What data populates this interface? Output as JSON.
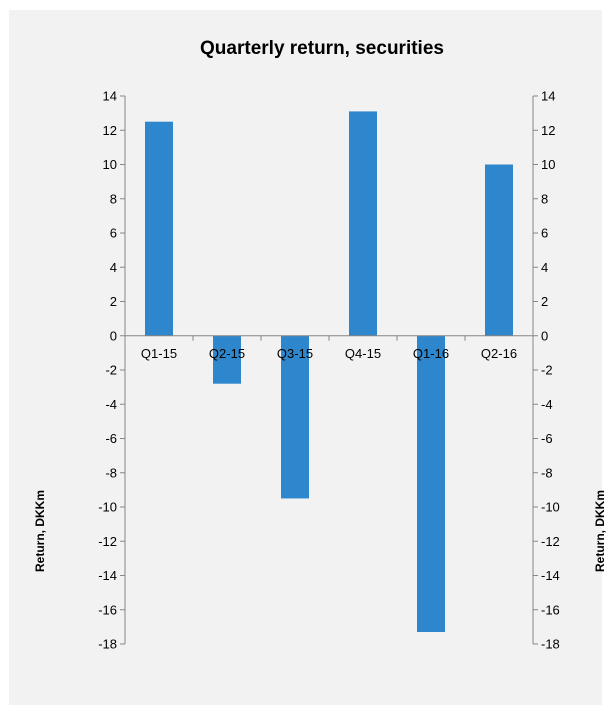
{
  "chart_data": {
    "type": "bar",
    "title": "Quarterly return, securities",
    "categories": [
      "Q1-15",
      "Q2-15",
      "Q3-15",
      "Q4-15",
      "Q1-16",
      "Q2-16"
    ],
    "series": [
      {
        "values": [
          12.5,
          -2.8,
          -9.5,
          13.1,
          -17.3,
          10.0
        ]
      }
    ],
    "ylabel_left": "Return, DKKm",
    "ylabel_right": "Return, DKKm",
    "ylim": [
      -18,
      14
    ],
    "yticks": [
      14,
      12,
      10,
      8,
      6,
      4,
      2,
      0,
      -2,
      -4,
      -6,
      -8,
      -10,
      -12,
      -14,
      -16,
      -18
    ],
    "bar_color": "#2e86cc",
    "background_color": "#f2f2f2",
    "grid": false,
    "legend": "none"
  }
}
